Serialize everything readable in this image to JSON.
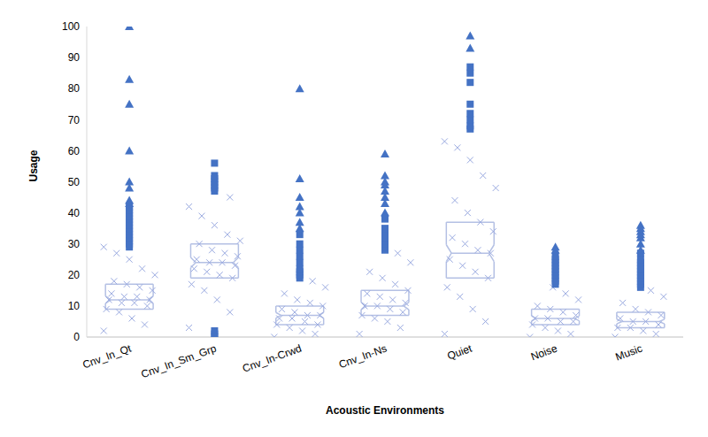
{
  "chart_data": {
    "type": "box",
    "x_label": "Acoustic Environments",
    "y_label": "Usage",
    "categories": [
      "Cnv_In_Qt",
      "Cnv_In_Sm_Grp",
      "Cnv_In-Crwd",
      "Cnv_In-Ns",
      "Quiet",
      "Noise",
      "Music"
    ],
    "ylim": [
      0,
      100
    ],
    "yticks": [
      0,
      10,
      20,
      30,
      40,
      50,
      60,
      70,
      80,
      90,
      100
    ],
    "grid": false,
    "boxes": {
      "color": "#b4c0e4",
      "q1": [
        9,
        19,
        4,
        7,
        19,
        4,
        3
      ],
      "median": [
        12,
        24,
        7,
        10,
        27,
        6,
        5
      ],
      "q3": [
        17,
        30,
        10,
        15,
        37,
        9,
        8
      ]
    },
    "points": {
      "color": "#9aaae0",
      "marker": "x",
      "values": [
        [
          2,
          4,
          6,
          8,
          9,
          10,
          11,
          11,
          12,
          12,
          13,
          13,
          14,
          15,
          16,
          17,
          18,
          20,
          22,
          25,
          27,
          29
        ],
        [
          3,
          8,
          12,
          15,
          17,
          19,
          20,
          21,
          22,
          23,
          24,
          24,
          25,
          26,
          27,
          28,
          30,
          31,
          33,
          36,
          39,
          42,
          45
        ],
        [
          0,
          1,
          2,
          3,
          4,
          4,
          5,
          6,
          6,
          7,
          7,
          8,
          9,
          10,
          11,
          12,
          14,
          16,
          18
        ],
        [
          1,
          3,
          5,
          6,
          7,
          8,
          9,
          10,
          10,
          11,
          12,
          13,
          14,
          15,
          17,
          19,
          21,
          24,
          27
        ],
        [
          1,
          5,
          9,
          13,
          16,
          19,
          21,
          23,
          25,
          27,
          28,
          30,
          32,
          34,
          37,
          40,
          44,
          48,
          52,
          57,
          61,
          63
        ],
        [
          0,
          1,
          2,
          3,
          4,
          5,
          5,
          6,
          6,
          7,
          8,
          9,
          10,
          12,
          14,
          16
        ],
        [
          0,
          1,
          2,
          3,
          3,
          4,
          5,
          5,
          6,
          7,
          8,
          9,
          11,
          13,
          15
        ]
      ]
    },
    "outliers": {
      "color": "#4472c4",
      "marker": "square",
      "values": [
        [
          29,
          30,
          31,
          32,
          33,
          34,
          35,
          36,
          37,
          38,
          39,
          40,
          41,
          42
        ],
        [
          0,
          1,
          2,
          47,
          48,
          49,
          50,
          51,
          52,
          56
        ],
        [
          19,
          20,
          21,
          22,
          24,
          26,
          28,
          30,
          33
        ],
        [
          28,
          29,
          30,
          31,
          32,
          33,
          35,
          38
        ],
        [
          67,
          68,
          70,
          72,
          75,
          82,
          85,
          87
        ],
        [
          17,
          18,
          19,
          20,
          21,
          22,
          23,
          24,
          25,
          26
        ],
        [
          16,
          17,
          18,
          19,
          20,
          21,
          22,
          23,
          24,
          25,
          27
        ]
      ]
    },
    "extreme_outliers": {
      "color": "#4472c4",
      "marker": "triangle",
      "values": [
        [
          43,
          44,
          48,
          50,
          60,
          75,
          83,
          100
        ],
        [],
        [
          35,
          37,
          40,
          42,
          45,
          51,
          80
        ],
        [
          40,
          43,
          45,
          47,
          49,
          50,
          52,
          59
        ],
        [
          93,
          97
        ],
        [
          28,
          29
        ],
        [
          28,
          30,
          32,
          33,
          34,
          35,
          36
        ]
      ]
    }
  }
}
